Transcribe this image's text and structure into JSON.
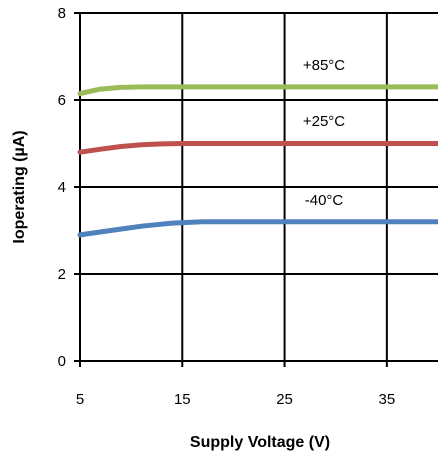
{
  "chart_data": {
    "type": "line",
    "title": "",
    "xlabel": "Supply Voltage (V)",
    "ylabel": "Ioperating (µA)",
    "xlim": [
      5,
      40
    ],
    "ylim": [
      0,
      8
    ],
    "x_ticks": [
      5,
      15,
      25,
      35
    ],
    "y_ticks": [
      0,
      2,
      4,
      6,
      8
    ],
    "grid": true,
    "legend": "inline labels",
    "series": [
      {
        "name": "+85°C",
        "color": "#9bbb59",
        "x": [
          5,
          7,
          9,
          11,
          13,
          15,
          20,
          25,
          30,
          35,
          40
        ],
        "y": [
          6.15,
          6.25,
          6.29,
          6.3,
          6.3,
          6.3,
          6.3,
          6.3,
          6.3,
          6.3,
          6.3
        ]
      },
      {
        "name": "+25°C",
        "color": "#c0504d",
        "x": [
          5,
          7,
          9,
          11,
          13,
          15,
          20,
          25,
          30,
          35,
          40
        ],
        "y": [
          4.8,
          4.87,
          4.93,
          4.97,
          4.99,
          5.0,
          5.0,
          5.0,
          5.0,
          5.0,
          5.0
        ]
      },
      {
        "name": "-40°C",
        "color": "#4f81bd",
        "x": [
          5,
          8,
          11,
          14,
          17,
          20,
          25,
          30,
          35,
          40
        ],
        "y": [
          2.9,
          3.0,
          3.1,
          3.17,
          3.2,
          3.2,
          3.2,
          3.2,
          3.2,
          3.2
        ]
      }
    ]
  }
}
